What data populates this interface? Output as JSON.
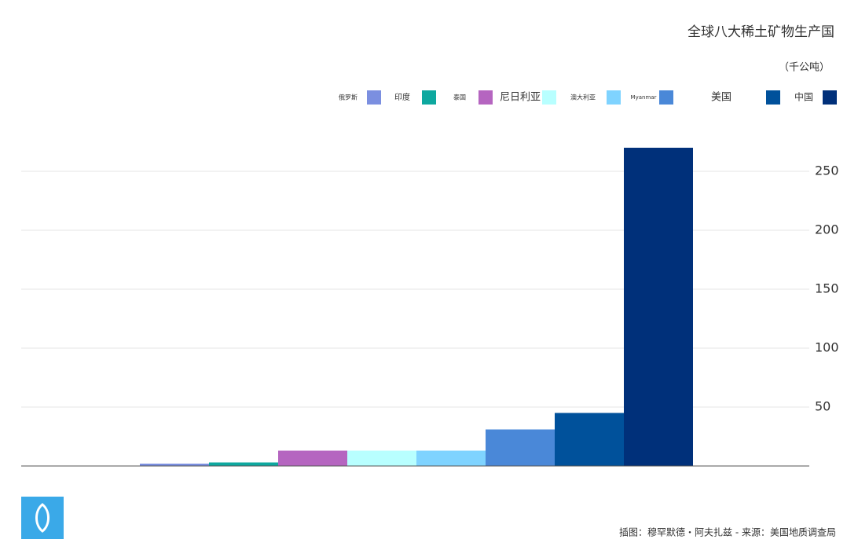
{
  "chart_data": {
    "type": "bar",
    "title": "全球八大稀土矿物生产国",
    "subtitle": "（千公吨）",
    "categories": [
      "俄罗斯",
      "印度",
      "泰国",
      "尼日利亚",
      "澳大利亚",
      "Myanmar",
      "美国",
      "中国"
    ],
    "values": [
      2,
      3,
      13,
      13,
      13,
      31,
      45,
      270
    ],
    "colors": [
      "#7b8fe0",
      "#0ea89f",
      "#b565c0",
      "#b8ffff",
      "#7fd3ff",
      "#4a88d8",
      "#00519b",
      "#00307a"
    ],
    "ylim": [
      0,
      270
    ],
    "yticks": [
      50,
      100,
      150,
      200,
      250
    ],
    "grid": true,
    "source": "插图：穆罕默德・阿夫扎兹 - 来源：美国地质调查局"
  }
}
